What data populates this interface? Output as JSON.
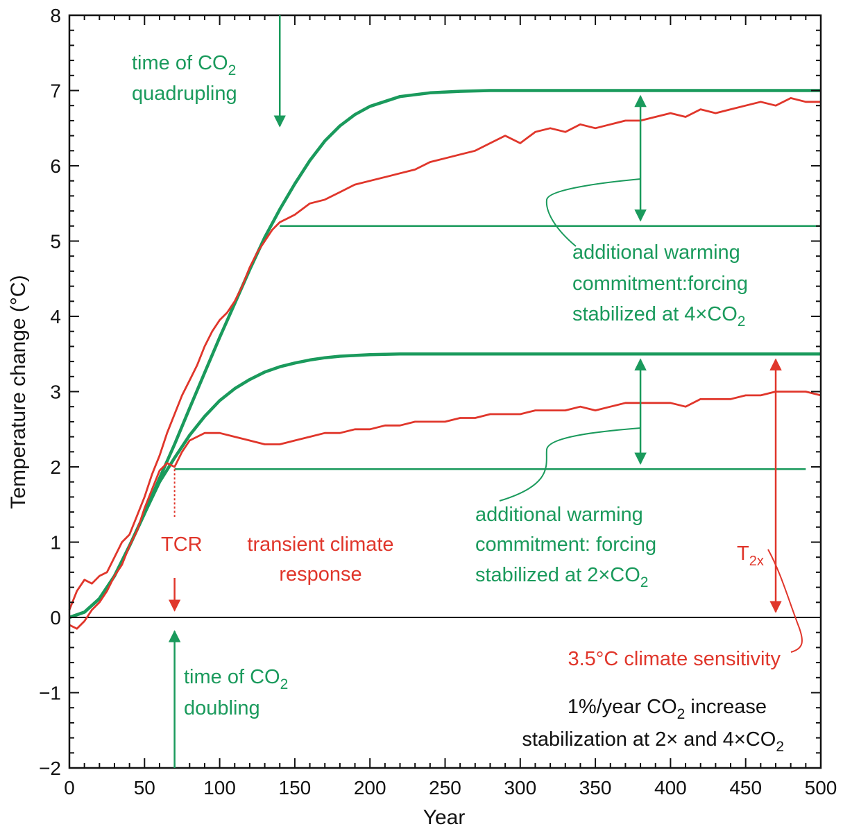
{
  "colors": {
    "green": "#1a9a5c",
    "red": "#e0362b",
    "black": "#111111"
  },
  "chart_data": {
    "type": "line",
    "xlabel": "Year",
    "ylabel": "Temperature change (°C)",
    "xlim": [
      0,
      500
    ],
    "ylim": [
      -2,
      8
    ],
    "x_ticks": [
      "0",
      "50",
      "100",
      "150",
      "200",
      "250",
      "300",
      "350",
      "400",
      "450",
      "500"
    ],
    "y_ticks": [
      "−2",
      "−1",
      "0",
      "1",
      "2",
      "3",
      "4",
      "5",
      "6",
      "7",
      "8"
    ],
    "grid": false,
    "series": [
      {
        "kind": "equilibrium response, 4×CO2",
        "color": "green",
        "x": [
          0,
          10,
          20,
          30,
          40,
          50,
          60,
          70,
          80,
          90,
          100,
          110,
          120,
          130,
          140,
          150,
          160,
          170,
          180,
          190,
          200,
          220,
          240,
          260,
          280,
          300,
          350,
          400,
          450,
          500
        ],
        "y": [
          0,
          0.07,
          0.25,
          0.55,
          0.95,
          1.38,
          1.85,
          2.3,
          2.78,
          3.25,
          3.72,
          4.17,
          4.62,
          5.05,
          5.42,
          5.76,
          6.07,
          6.33,
          6.53,
          6.68,
          6.79,
          6.92,
          6.97,
          6.99,
          7.0,
          7.0,
          7.0,
          7.0,
          7.0,
          7.0
        ]
      },
      {
        "kind": "equilibrium response, 2×CO2",
        "color": "green",
        "x": [
          0,
          10,
          20,
          30,
          40,
          50,
          60,
          70,
          80,
          90,
          100,
          110,
          120,
          130,
          140,
          150,
          160,
          170,
          180,
          190,
          200,
          220,
          240,
          260,
          280,
          300,
          350,
          400,
          450,
          500
        ],
        "y": [
          0,
          0.07,
          0.25,
          0.55,
          0.95,
          1.38,
          1.8,
          2.12,
          2.42,
          2.67,
          2.88,
          3.04,
          3.16,
          3.26,
          3.33,
          3.38,
          3.42,
          3.45,
          3.47,
          3.48,
          3.49,
          3.5,
          3.5,
          3.5,
          3.5,
          3.5,
          3.5,
          3.5,
          3.5,
          3.5
        ]
      },
      {
        "kind": "model temperature, 4×CO2",
        "color": "red",
        "x": [
          0,
          5,
          10,
          15,
          20,
          25,
          30,
          35,
          40,
          45,
          50,
          55,
          60,
          65,
          70,
          75,
          80,
          85,
          90,
          95,
          100,
          105,
          110,
          115,
          120,
          125,
          130,
          135,
          140,
          145,
          150,
          160,
          170,
          180,
          190,
          200,
          210,
          220,
          230,
          240,
          250,
          260,
          270,
          280,
          290,
          300,
          310,
          320,
          330,
          340,
          350,
          360,
          370,
          380,
          390,
          400,
          410,
          420,
          430,
          440,
          450,
          460,
          470,
          480,
          490,
          500
        ],
        "y": [
          0.1,
          0.35,
          0.5,
          0.45,
          0.55,
          0.6,
          0.8,
          1.0,
          1.1,
          1.35,
          1.6,
          1.9,
          2.15,
          2.45,
          2.7,
          2.95,
          3.15,
          3.35,
          3.6,
          3.8,
          3.95,
          4.05,
          4.2,
          4.4,
          4.65,
          4.85,
          5.0,
          5.15,
          5.25,
          5.3,
          5.35,
          5.5,
          5.55,
          5.65,
          5.75,
          5.8,
          5.85,
          5.9,
          5.95,
          6.05,
          6.1,
          6.15,
          6.2,
          6.3,
          6.4,
          6.3,
          6.45,
          6.5,
          6.45,
          6.55,
          6.5,
          6.55,
          6.6,
          6.6,
          6.65,
          6.7,
          6.65,
          6.75,
          6.7,
          6.75,
          6.8,
          6.85,
          6.8,
          6.9,
          6.85,
          6.85
        ]
      },
      {
        "kind": "model temperature, 2×CO2",
        "color": "red",
        "x": [
          0,
          5,
          10,
          15,
          20,
          25,
          30,
          35,
          40,
          45,
          50,
          55,
          60,
          65,
          70,
          75,
          80,
          90,
          100,
          110,
          120,
          130,
          140,
          150,
          160,
          170,
          180,
          190,
          200,
          210,
          220,
          230,
          240,
          250,
          260,
          270,
          280,
          290,
          300,
          310,
          320,
          330,
          340,
          350,
          360,
          370,
          380,
          390,
          400,
          410,
          420,
          430,
          440,
          450,
          460,
          470,
          480,
          490,
          500
        ],
        "y": [
          -0.1,
          -0.15,
          -0.05,
          0.1,
          0.2,
          0.35,
          0.55,
          0.7,
          0.95,
          1.15,
          1.45,
          1.7,
          1.95,
          2.05,
          2.0,
          2.2,
          2.35,
          2.45,
          2.45,
          2.4,
          2.35,
          2.3,
          2.3,
          2.35,
          2.4,
          2.45,
          2.45,
          2.5,
          2.5,
          2.55,
          2.55,
          2.6,
          2.6,
          2.6,
          2.65,
          2.65,
          2.7,
          2.7,
          2.7,
          2.75,
          2.75,
          2.75,
          2.8,
          2.75,
          2.8,
          2.85,
          2.85,
          2.85,
          2.85,
          2.8,
          2.9,
          2.9,
          2.9,
          2.95,
          2.95,
          3.0,
          3.0,
          3.0,
          2.95
        ]
      }
    ],
    "reference_lines": [
      {
        "kind": "zero line",
        "color": "black",
        "y": 0,
        "x_from": 0,
        "x_to": 500
      },
      {
        "kind": "TCR level at 4×CO2",
        "color": "green",
        "y": 5.2,
        "x_from": 140,
        "x_to": 500
      },
      {
        "kind": "TCR level at 2×CO2",
        "color": "green",
        "y": 1.97,
        "x_from": 70,
        "x_to": 490
      }
    ],
    "annotations": {
      "time_quad": {
        "line1_pre": "time of CO",
        "line1_sub": "2",
        "line2": "quadrupling",
        "arrow_x": 140
      },
      "time_double": {
        "line1_pre": "time of CO",
        "line1_sub": "2",
        "line2": "doubling",
        "arrow_x": 70
      },
      "tcr_label": "TCR",
      "tcr_desc_line1": "transient climate",
      "tcr_desc_line2": "response",
      "commit4": {
        "line1": "additional warming",
        "line2": "commitment:forcing",
        "line3_pre": "stabilized at 4×CO",
        "line3_sub": "2",
        "arrow_x": 380,
        "y_from": 5.2,
        "y_to": 7.0
      },
      "commit2": {
        "line1": "additional warming",
        "line2": "commitment: forcing",
        "line3_pre": "stabilized at 2×CO",
        "line3_sub": "2",
        "arrow_x": 380,
        "y_from": 1.97,
        "y_to": 3.5
      },
      "t2x": {
        "main": "T",
        "sub": "2x",
        "arrow_x": 470,
        "y_from": 0,
        "y_to": 3.5
      },
      "sensitivity": "3.5°C climate sensitivity",
      "note_line1_pre": "1%/year CO",
      "note_line1_sub": "2",
      "note_line1_post": " increase",
      "note_line2_pre": "stabilization at 2× and 4×CO",
      "note_line2_sub": "2"
    }
  }
}
